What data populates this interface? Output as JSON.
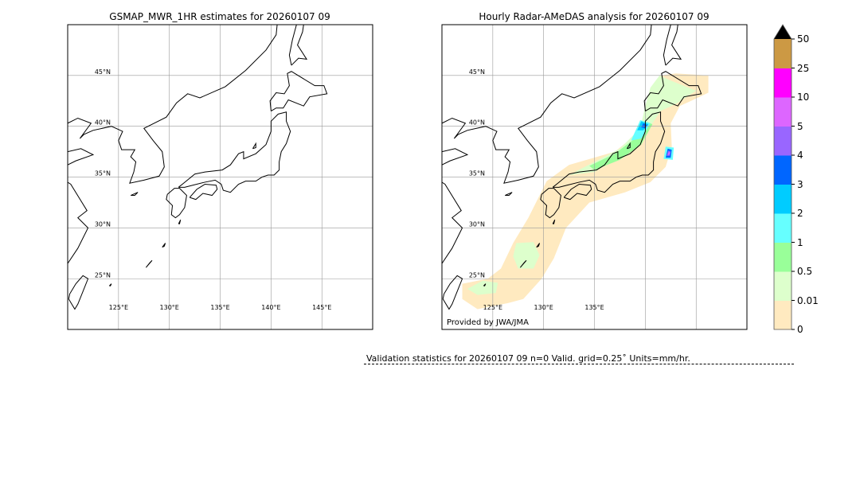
{
  "left_map": {
    "title": "GSMAP_MWR_1HR estimates for 20260107 09",
    "lon_labels": [
      "125°E",
      "130°E",
      "135°E",
      "140°E",
      "145°E"
    ],
    "lon_values": [
      125,
      130,
      135,
      140,
      145
    ],
    "lat_labels": [
      "45°N",
      "40°N",
      "35°N",
      "30°N",
      "25°N"
    ],
    "lat_values": [
      45,
      40,
      35,
      30,
      25
    ]
  },
  "right_map": {
    "title": "Hourly Radar-AMeDAS analysis for 20260107 09",
    "lon_labels": [
      "125°E",
      "130°E",
      "135°E"
    ],
    "lon_values": [
      125,
      130,
      135
    ],
    "lat_labels": [
      "45°N",
      "40°N",
      "35°N",
      "30°N",
      "25°N"
    ],
    "lat_values": [
      45,
      40,
      35,
      30,
      25
    ],
    "credit": "Provided by JWA/JMA"
  },
  "extent": {
    "lon": [
      120,
      150
    ],
    "lat": [
      20,
      50
    ]
  },
  "colorbar": {
    "labels": [
      "0",
      "0.01",
      "0.5",
      "1",
      "2",
      "3",
      "4",
      "5",
      "10",
      "25",
      "50"
    ],
    "colors": [
      "#ffeac0",
      "#ddffcc",
      "#99ff99",
      "#66ffff",
      "#00ccff",
      "#0066ff",
      "#9966ff",
      "#dd66ff",
      "#ff00ff",
      "#cc9944"
    ],
    "extend": "max",
    "extend_color": "#000000"
  },
  "validation": "Validation statistics for 20260107 09  n=0 Valid. grid=0.25˚ Units=mm/hr.",
  "rain_fields": [
    {
      "level": "0.01",
      "color": "#ffeac0",
      "poly": [
        [
          122,
          23
        ],
        [
          122,
          24.5
        ],
        [
          124.5,
          25
        ],
        [
          125.8,
          26
        ],
        [
          127,
          28.5
        ],
        [
          128.5,
          31
        ],
        [
          130.3,
          34.6
        ],
        [
          132.5,
          36.2
        ],
        [
          137,
          37.5
        ],
        [
          139.5,
          39.5
        ],
        [
          140,
          41.6
        ],
        [
          140.5,
          43
        ],
        [
          141.5,
          45
        ],
        [
          143,
          45.2
        ],
        [
          146.2,
          45
        ],
        [
          146.2,
          43.3
        ],
        [
          144.5,
          42.5
        ],
        [
          143.4,
          42
        ],
        [
          142.5,
          40.3
        ],
        [
          142.6,
          38
        ],
        [
          142,
          36
        ],
        [
          140.5,
          34.5
        ],
        [
          138,
          33.5
        ],
        [
          134.5,
          32.5
        ],
        [
          132.2,
          30
        ],
        [
          131,
          27
        ],
        [
          129.8,
          25
        ],
        [
          128,
          23
        ],
        [
          126.5,
          22.6
        ],
        [
          123.5,
          22.0
        ]
      ]
    },
    {
      "level": "0.5",
      "color": "#ddffcc",
      "poly": [
        [
          132.5,
          35.2
        ],
        [
          135,
          36.5
        ],
        [
          137.5,
          37.8
        ],
        [
          139.5,
          39.8
        ],
        [
          140,
          42
        ],
        [
          140.5,
          43.8
        ],
        [
          141.4,
          45
        ],
        [
          142.5,
          44.5
        ],
        [
          145,
          43.5
        ],
        [
          143,
          42.2
        ],
        [
          141.5,
          41.5
        ],
        [
          140.5,
          40
        ],
        [
          139.2,
          38
        ],
        [
          137.5,
          37
        ],
        [
          135,
          35.5
        ]
      ]
    },
    {
      "level": "0.5",
      "color": "#ddffcc",
      "poly": [
        [
          127.3,
          28.5
        ],
        [
          129,
          28.6
        ],
        [
          129.6,
          27.3
        ],
        [
          129,
          26
        ],
        [
          127.5,
          26
        ],
        [
          127,
          27.2
        ]
      ]
    },
    {
      "level": "0.5",
      "color": "#ddffcc",
      "poly": [
        [
          122.5,
          24
        ],
        [
          124,
          24.8
        ],
        [
          125.5,
          24.6
        ],
        [
          125.3,
          23.6
        ],
        [
          123.5,
          23.4
        ]
      ]
    },
    {
      "level": "1",
      "color": "#99ff99",
      "poly": [
        [
          134.5,
          36.1
        ],
        [
          137,
          37.3
        ],
        [
          139,
          38.8
        ],
        [
          140,
          40.5
        ],
        [
          140.7,
          40.2
        ],
        [
          139.6,
          38.2
        ],
        [
          137.5,
          36.7
        ],
        [
          135,
          35.7
        ]
      ]
    },
    {
      "level": "2",
      "color": "#66ffff",
      "poly": [
        [
          138.6,
          38.6
        ],
        [
          139.5,
          40.6
        ],
        [
          140.5,
          40.3
        ],
        [
          139.6,
          38.8
        ]
      ]
    },
    {
      "level": "3",
      "color": "#00ccff",
      "poly": [
        [
          139.2,
          39.6
        ],
        [
          139.6,
          40.5
        ],
        [
          140.3,
          40.2
        ],
        [
          139.8,
          39.6
        ]
      ]
    },
    {
      "level": "4",
      "color": "#0066ff",
      "poly": [
        [
          139.6,
          39.9
        ],
        [
          139.8,
          40.3
        ],
        [
          140.2,
          40.1
        ],
        [
          140,
          39.8
        ]
      ]
    },
    {
      "level": "2",
      "color": "#66ffff",
      "poly": [
        [
          141.8,
          36.8
        ],
        [
          142,
          38
        ],
        [
          142.8,
          37.9
        ],
        [
          142.7,
          36.7
        ]
      ]
    },
    {
      "level": "4",
      "color": "#0066ff",
      "poly": [
        [
          142,
          36.9
        ],
        [
          142.2,
          37.8
        ],
        [
          142.6,
          37.7
        ],
        [
          142.5,
          36.9
        ]
      ]
    },
    {
      "level": "5",
      "color": "#9966ff",
      "poly": [
        [
          142.1,
          37.1
        ],
        [
          142.25,
          37.6
        ],
        [
          142.5,
          37.5
        ],
        [
          142.4,
          37.1
        ]
      ]
    },
    {
      "level": "10",
      "color": "#dd66ff",
      "poly": [
        [
          142.2,
          37.2
        ],
        [
          142.3,
          37.45
        ],
        [
          142.45,
          37.4
        ],
        [
          142.35,
          37.2
        ]
      ]
    }
  ]
}
